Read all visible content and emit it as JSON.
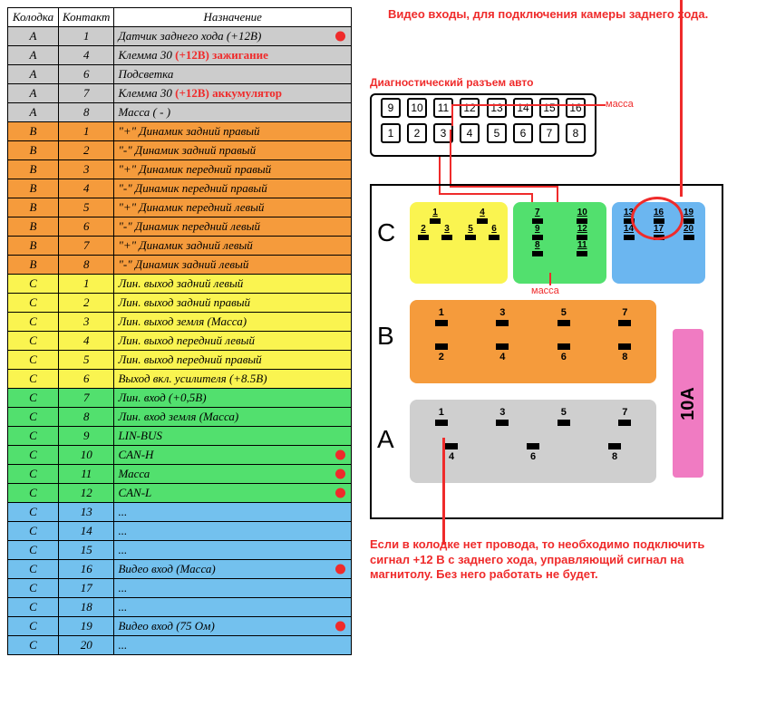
{
  "table": {
    "headers": {
      "kol": "Колодка",
      "kon": "Контакт",
      "naz": "Назначение"
    },
    "rows": [
      {
        "kol": "A",
        "kon": "1",
        "naz": "Датчик заднего хода (+12В)",
        "bg": "#cccccc",
        "dot": true
      },
      {
        "kol": "A",
        "kon": "4",
        "naz": "Клемма 30",
        "extra": "(+12В) зажигание",
        "bg": "#cccccc"
      },
      {
        "kol": "A",
        "kon": "6",
        "naz": "Подсветка",
        "bg": "#cccccc"
      },
      {
        "kol": "A",
        "kon": "7",
        "naz": "Клемма 30",
        "extra": "(+12В) аккумулятор",
        "bg": "#cccccc"
      },
      {
        "kol": "A",
        "kon": "8",
        "naz": "Масса   ( - )",
        "bg": "#cccccc"
      },
      {
        "kol": "B",
        "kon": "1",
        "naz": "\"+\" Динамик задний правый",
        "bg": "#f59b3c"
      },
      {
        "kol": "B",
        "kon": "2",
        "naz": "\"-\" Динамик задний правый",
        "bg": "#f59b3c"
      },
      {
        "kol": "B",
        "kon": "3",
        "naz": "\"+\" Динамик передний правый",
        "bg": "#f59b3c"
      },
      {
        "kol": "B",
        "kon": "4",
        "naz": "\"-\" Динамик передний правый",
        "bg": "#f59b3c"
      },
      {
        "kol": "B",
        "kon": "5",
        "naz": "\"+\" Динамик передний левый",
        "bg": "#f59b3c"
      },
      {
        "kol": "B",
        "kon": "6",
        "naz": "\"-\" Динамик передний левый",
        "bg": "#f59b3c"
      },
      {
        "kol": "B",
        "kon": "7",
        "naz": "\"+\" Динамик задний левый",
        "bg": "#f59b3c"
      },
      {
        "kol": "B",
        "kon": "8",
        "naz": "\"-\" Динамик задний левый",
        "bg": "#f59b3c"
      },
      {
        "kol": "C",
        "kon": "1",
        "naz": "Лин. выход задний левый",
        "bg": "#faf450"
      },
      {
        "kol": "C",
        "kon": "2",
        "naz": "Лин. выход задний правый",
        "bg": "#faf450"
      },
      {
        "kol": "C",
        "kon": "3",
        "naz": "Лин. выход земля (Масса)",
        "bg": "#faf450"
      },
      {
        "kol": "C",
        "kon": "4",
        "naz": "Лин. выход передний левый",
        "bg": "#faf450"
      },
      {
        "kol": "C",
        "kon": "5",
        "naz": "Лин. выход передний правый",
        "bg": "#faf450"
      },
      {
        "kol": "C",
        "kon": "6",
        "naz": "Выход вкл. усилителя (+8.5В)",
        "bg": "#faf450"
      },
      {
        "kol": "C",
        "kon": "7",
        "naz": "Лин. вход (+0,5В)",
        "bg": "#52e06e"
      },
      {
        "kol": "C",
        "kon": "8",
        "naz": "Лин. вход земля (Масса)",
        "bg": "#52e06e"
      },
      {
        "kol": "C",
        "kon": "9",
        "naz": "LIN-BUS",
        "bg": "#52e06e"
      },
      {
        "kol": "C",
        "kon": "10",
        "naz": "CAN-H",
        "bg": "#52e06e",
        "dot": true
      },
      {
        "kol": "C",
        "kon": "11",
        "naz": "Масса",
        "bg": "#52e06e",
        "dot": true
      },
      {
        "kol": "C",
        "kon": "12",
        "naz": "CAN-L",
        "bg": "#52e06e",
        "dot": true
      },
      {
        "kol": "C",
        "kon": "13",
        "naz": "...",
        "bg": "#73c1ee"
      },
      {
        "kol": "C",
        "kon": "14",
        "naz": "...",
        "bg": "#73c1ee"
      },
      {
        "kol": "C",
        "kon": "15",
        "naz": "...",
        "bg": "#73c1ee"
      },
      {
        "kol": "C",
        "kon": "16",
        "naz": "Видео вход (Масса)",
        "bg": "#73c1ee",
        "dot": true
      },
      {
        "kol": "C",
        "kon": "17",
        "naz": "...",
        "bg": "#73c1ee"
      },
      {
        "kol": "C",
        "kon": "18",
        "naz": "...",
        "bg": "#73c1ee"
      },
      {
        "kol": "C",
        "kon": "19",
        "naz": "Видео вход (75 Ом)",
        "bg": "#73c1ee",
        "dot": true
      },
      {
        "kol": "C",
        "kon": "20",
        "naz": "...",
        "bg": "#73c1ee"
      }
    ]
  },
  "annotations": {
    "video_in": "Видео входы, для подключения камеры заднего хода.",
    "diag_title": "Диагностический разъем авто",
    "massa1": "масса",
    "massa2": "масса",
    "bottom": "Если в колодке нет провода, то необходимо подключить сигнал +12 В с заднего хода, управляющий сигнал на магнитолу. Без него работать не будет."
  },
  "connectors": {
    "c_label": "C",
    "b_label": "B",
    "a_label": "A",
    "ten_a": "10A",
    "c_yellow": {
      "bg": "#faf450",
      "top": [
        "1",
        "4"
      ],
      "bot": [
        "2",
        "3",
        "5",
        "6"
      ]
    },
    "c_green": {
      "bg": "#52e06e",
      "top": [
        "7",
        "10"
      ],
      "mid": [
        "9",
        "12"
      ],
      "bot": [
        "8",
        "11"
      ]
    },
    "c_blue": {
      "bg": "#6bb6f0",
      "top": [
        "13",
        "16",
        "19"
      ],
      "bot": [
        "14",
        "17",
        "20"
      ]
    },
    "b": {
      "bg": "#f59b3c",
      "top": [
        "1",
        "3",
        "5",
        "7"
      ],
      "bot": [
        "2",
        "4",
        "6",
        "8"
      ]
    },
    "a": {
      "bg": "#cfcfcf",
      "top": [
        "1",
        "3",
        "5",
        "7"
      ],
      "bot": [
        "4",
        "6",
        "8"
      ]
    },
    "diag_top": [
      "16",
      "15",
      "14",
      "13",
      "12",
      "11",
      "10",
      "9"
    ],
    "diag_bot": [
      "8",
      "7",
      "6",
      "5",
      "4",
      "3",
      "2",
      "1"
    ]
  },
  "colors": {
    "red": "#ef2b2b",
    "border": "#000000"
  }
}
